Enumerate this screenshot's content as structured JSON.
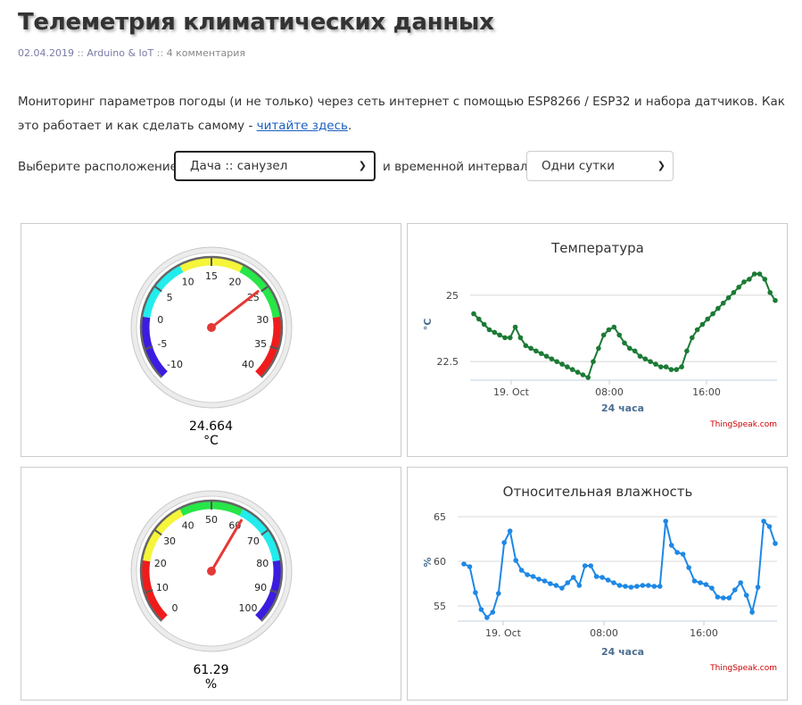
{
  "page": {
    "title": "Телеметрия климатических данных",
    "date": "02.04.2019",
    "separator": "::",
    "category": "Arduino & IoT",
    "comments": "4 комментария",
    "intro_text": "Мониторинг параметров погоды (и не только) через сеть интернет с помощью ESP8266 / ESP32 и набора датчиков. Как это работает и как сделать самому - ",
    "intro_link": "читайте здесь",
    "intro_end": "."
  },
  "controls": {
    "location_label": "Выберите расположение:",
    "location_value": "Дача :: санузел",
    "interval_label": "и временной интервал:",
    "interval_value": "Одни сутки"
  },
  "gauges": {
    "temperature": {
      "value": "24.664",
      "unit": "°C",
      "min": -10,
      "max": 40,
      "reading": 24.664,
      "ticks": [
        "-10",
        "-5",
        "0",
        "5",
        "10",
        "15",
        "20",
        "25",
        "30",
        "35",
        "40"
      ]
    },
    "humidity": {
      "value": "61.29",
      "unit": "%",
      "min": 0,
      "max": 100,
      "reading": 61.29,
      "ticks": [
        "0",
        "10",
        "20",
        "30",
        "40",
        "50",
        "60",
        "70",
        "80",
        "90",
        "100"
      ]
    }
  },
  "colors": {
    "temp_line": "#1b7a35",
    "hum_line": "#1e88e5",
    "needle": "#e53935",
    "zone_blue": "#3b1de0",
    "zone_cyan": "#22ecec",
    "zone_yellow": "#f5f53a",
    "zone_green": "#27e647",
    "zone_red": "#f01c1c"
  },
  "chart_data": [
    {
      "type": "line",
      "title": "Температура",
      "xlabel": "24 часа",
      "ylabel": "°C",
      "x_tick_labels": [
        "19. Oct",
        "08:00",
        "16:00"
      ],
      "y_tick_labels": [
        "22.5",
        "25"
      ],
      "ylim": [
        21.8,
        26.0
      ],
      "credit": "ThingSpeak.com",
      "series": [
        {
          "values": [
            24.3,
            24.1,
            23.9,
            23.7,
            23.6,
            23.5,
            23.4,
            23.4,
            23.8,
            23.4,
            23.1,
            23.0,
            22.9,
            22.8,
            22.7,
            22.6,
            22.5,
            22.4,
            22.3,
            22.2,
            22.1,
            22.0,
            21.9,
            22.5,
            23.0,
            23.5,
            23.7,
            23.8,
            23.5,
            23.2,
            23.0,
            22.9,
            22.7,
            22.6,
            22.5,
            22.4,
            22.3,
            22.3,
            22.2,
            22.2,
            22.3,
            22.9,
            23.4,
            23.7,
            23.9,
            24.1,
            24.3,
            24.5,
            24.7,
            24.9,
            25.1,
            25.3,
            25.5,
            25.6,
            25.8,
            25.8,
            25.6,
            25.1,
            24.8
          ]
        }
      ]
    },
    {
      "type": "line",
      "title": "Относительная влажность",
      "xlabel": "24 часа",
      "ylabel": "%",
      "x_tick_labels": [
        "19. Oct",
        "08:00",
        "16:00"
      ],
      "y_tick_labels": [
        "55",
        "60",
        "65"
      ],
      "ylim": [
        53.3,
        66.5
      ],
      "credit": "ThingSpeak.com",
      "series": [
        {
          "values": [
            59.7,
            59.4,
            56.5,
            54.6,
            53.7,
            54.3,
            56.4,
            62.1,
            63.4,
            60.1,
            59.0,
            58.5,
            58.3,
            58.0,
            57.8,
            57.5,
            57.3,
            57.0,
            57.6,
            58.2,
            57.3,
            59.5,
            59.5,
            58.3,
            58.2,
            57.9,
            57.6,
            57.3,
            57.2,
            57.1,
            57.2,
            57.3,
            57.3,
            57.2,
            57.2,
            64.5,
            61.8,
            61.0,
            60.8,
            59.3,
            57.8,
            57.6,
            57.4,
            57.0,
            56.0,
            55.9,
            55.9,
            56.8,
            57.6,
            56.2,
            54.3,
            57.1,
            64.5,
            63.9,
            62.0
          ]
        }
      ]
    }
  ]
}
